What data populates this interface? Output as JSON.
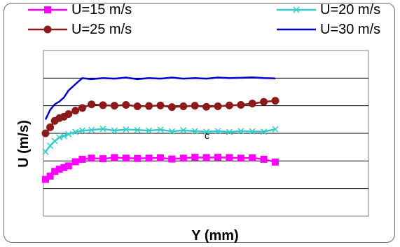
{
  "chart_data": {
    "type": "line",
    "title": "",
    "xlabel": "Y (mm)",
    "ylabel": "U (m/s)",
    "xlim": [
      0,
      100
    ],
    "ylim": [
      0,
      6
    ],
    "gridlines": "horizontal",
    "legend_position": "top",
    "annotation": "c",
    "series": [
      {
        "name": "U=15 m/s",
        "color": "#ff00ff",
        "marker": "square",
        "x": [
          0,
          2,
          4,
          6,
          8,
          10,
          13,
          16,
          20,
          25,
          30,
          35,
          40,
          45,
          50,
          55,
          60,
          65,
          70,
          75,
          80,
          85,
          90,
          95,
          100
        ],
        "values": [
          1.33,
          1.45,
          1.62,
          1.7,
          1.76,
          1.82,
          1.97,
          2.06,
          2.1,
          2.08,
          2.12,
          2.1,
          2.09,
          2.1,
          2.11,
          2.07,
          2.1,
          2.13,
          2.12,
          2.13,
          2.12,
          2.1,
          2.11,
          2.06,
          1.96
        ]
      },
      {
        "name": "U=20 m/s",
        "color": "#33cccc",
        "marker": "x",
        "x": [
          0,
          2,
          4,
          6,
          8,
          10,
          13,
          16,
          20,
          25,
          30,
          35,
          40,
          45,
          50,
          55,
          60,
          65,
          70,
          75,
          80,
          85,
          90,
          95,
          100
        ],
        "values": [
          2.33,
          2.55,
          2.72,
          2.85,
          2.9,
          2.97,
          3.05,
          3.1,
          3.12,
          3.16,
          3.1,
          3.14,
          3.12,
          3.1,
          3.13,
          3.07,
          3.11,
          3.08,
          3.06,
          3.08,
          3.05,
          3.08,
          3.07,
          3.06,
          3.15
        ]
      },
      {
        "name": "U=25 m/s",
        "color": "#8b1a1a",
        "marker": "circle",
        "x": [
          0,
          2,
          4,
          6,
          8,
          10,
          13,
          16,
          20,
          25,
          30,
          35,
          40,
          45,
          50,
          55,
          60,
          65,
          70,
          75,
          80,
          85,
          90,
          95,
          100
        ],
        "values": [
          3.0,
          3.22,
          3.45,
          3.55,
          3.6,
          3.7,
          3.82,
          3.92,
          4.05,
          4.02,
          4.0,
          4.03,
          3.98,
          3.99,
          4.01,
          3.95,
          3.98,
          4.0,
          3.96,
          3.98,
          4.01,
          4.03,
          4.08,
          4.14,
          4.18
        ]
      },
      {
        "name": "U=30 m/s",
        "color": "#0000cc",
        "marker": "none",
        "x": [
          0,
          2,
          4,
          6,
          8,
          10,
          13,
          16,
          20,
          25,
          30,
          35,
          40,
          45,
          50,
          55,
          60,
          65,
          70,
          75,
          80,
          85,
          90,
          95,
          100
        ],
        "values": [
          3.5,
          3.85,
          4.05,
          4.15,
          4.3,
          4.55,
          4.78,
          5.0,
          4.96,
          5.0,
          4.98,
          5.02,
          4.96,
          5.0,
          4.98,
          5.02,
          4.98,
          5.0,
          4.98,
          5.02,
          5.0,
          5.01,
          5.03,
          5.0,
          4.99
        ]
      }
    ]
  }
}
